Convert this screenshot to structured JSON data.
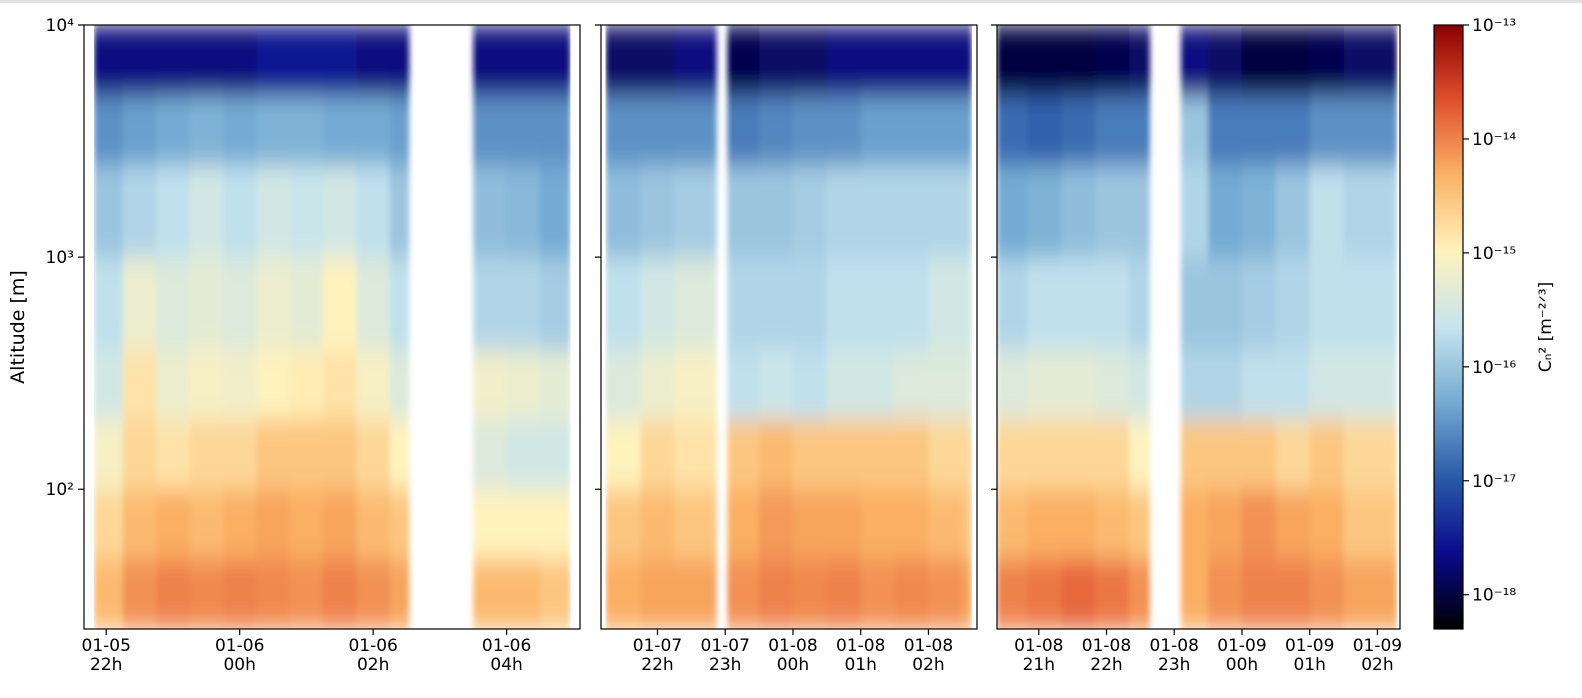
{
  "chart_data": [
    {
      "type": "heatmap",
      "ylabel": "Altitude [m]",
      "ylog": true,
      "ylim": [
        25,
        10000
      ],
      "yticks": [
        {
          "value": 100,
          "label": "10²"
        },
        {
          "value": 1000,
          "label": "10³"
        },
        {
          "value": 10000,
          "label": "10⁴"
        }
      ],
      "xlim": [
        "01-05 21:40",
        "01-06 05:06"
      ],
      "xticks": [
        {
          "value": "01-05 22:00",
          "label": [
            "01-05",
            "22h"
          ]
        },
        {
          "value": "01-06 00:00",
          "label": [
            "01-06",
            "00h"
          ]
        },
        {
          "value": "01-06 02:00",
          "label": [
            "01-06",
            "02h"
          ]
        },
        {
          "value": "01-06 04:00",
          "label": [
            "01-06",
            "04h"
          ]
        }
      ],
      "y_edges": [
        25,
        50,
        100,
        200,
        400,
        1000,
        2500,
        5000,
        10000
      ],
      "x": [
        "01-05 21:49",
        "01-05 22:15",
        "01-05 22:45",
        "01-05 23:15",
        "01-05 23:45",
        "01-06 00:15",
        "01-06 00:45",
        "01-06 01:15",
        "01-06 01:45",
        "01-06 02:15",
        "01-06 02:32",
        "01-06 03:30",
        "01-06 04:00",
        "01-06 04:30",
        "01-06 04:57"
      ],
      "values": [
        [
          4e-15,
          2e-15,
          8e-16,
          3e-16,
          2e-16,
          1e-16,
          3e-17,
          2e-18
        ],
        [
          8e-15,
          4e-15,
          2e-15,
          1.5e-15,
          6e-16,
          1.5e-16,
          4e-17,
          2e-18
        ],
        [
          1e-14,
          5e-15,
          1.5e-15,
          6e-16,
          4e-16,
          2e-16,
          5e-17,
          2e-18
        ],
        [
          9e-15,
          4e-15,
          2e-15,
          8e-16,
          5e-16,
          3e-16,
          6e-17,
          2e-18
        ],
        [
          1e-14,
          5e-15,
          2e-15,
          7e-16,
          4e-16,
          2e-16,
          5e-17,
          2e-18
        ],
        [
          9e-15,
          6e-15,
          3e-15,
          1e-15,
          6e-16,
          3e-16,
          6e-17,
          3e-18
        ],
        [
          8e-15,
          5e-15,
          3e-15,
          1.2e-15,
          5e-16,
          2.5e-16,
          6e-17,
          3e-18
        ],
        [
          1e-14,
          6e-15,
          3e-15,
          1.5e-15,
          1e-15,
          3e-16,
          5e-17,
          3e-18
        ],
        [
          8e-15,
          4e-15,
          2e-15,
          8e-16,
          4e-16,
          2e-16,
          5e-17,
          2e-18
        ],
        [
          6e-15,
          3e-15,
          1e-15,
          4e-16,
          2e-16,
          1e-16,
          4e-17,
          2e-18
        ],
        null,
        [
          4e-15,
          1e-15,
          4e-16,
          7e-16,
          1.5e-16,
          8e-17,
          3e-17,
          2e-18
        ],
        [
          4e-15,
          1e-15,
          3e-16,
          6e-16,
          1.5e-16,
          7e-17,
          3e-17,
          2e-18
        ],
        [
          3e-15,
          1e-15,
          3e-16,
          5e-16,
          1.2e-16,
          5e-17,
          3e-17,
          2e-18
        ]
      ]
    },
    {
      "type": "heatmap",
      "ylog": true,
      "ylim": [
        25,
        10000
      ],
      "yticks": [
        100,
        1000,
        10000
      ],
      "xlim": [
        "01-07 21:10",
        "01-08 02:43"
      ],
      "xticks": [
        {
          "value": "01-07 22:00",
          "label": [
            "01-07",
            "22h"
          ]
        },
        {
          "value": "01-07 23:00",
          "label": [
            "01-07",
            "23h"
          ]
        },
        {
          "value": "01-08 00:00",
          "label": [
            "01-08",
            "00h"
          ]
        },
        {
          "value": "01-08 01:00",
          "label": [
            "01-08",
            "01h"
          ]
        },
        {
          "value": "01-08 02:00",
          "label": [
            "01-08",
            "02h"
          ]
        }
      ],
      "y_edges": [
        25,
        50,
        100,
        200,
        400,
        1000,
        2500,
        5000,
        10000
      ],
      "x": [
        "01-07 21:14",
        "01-07 21:45",
        "01-07 22:15",
        "01-07 22:52",
        "01-07 23:02",
        "01-07 23:30",
        "01-08 00:00",
        "01-08 00:30",
        "01-08 01:00",
        "01-08 01:30",
        "01-08 02:00",
        "01-08 02:30",
        "01-08 02:38"
      ],
      "values": [
        [
          5e-15,
          3e-15,
          1e-15,
          4e-16,
          2e-16,
          8e-17,
          3e-17,
          1.5e-18
        ],
        [
          6e-15,
          4e-15,
          2e-15,
          6e-16,
          3e-16,
          1e-16,
          3e-17,
          1.5e-18
        ],
        [
          6e-15,
          3e-15,
          1.5e-15,
          8e-16,
          4e-16,
          1.2e-16,
          3e-17,
          2e-18
        ],
        null,
        [
          8e-15,
          5e-15,
          3e-15,
          2e-16,
          1.5e-16,
          1e-16,
          2e-17,
          1.2e-18
        ],
        [
          1e-14,
          7e-15,
          4e-15,
          2.5e-16,
          1.5e-16,
          1e-16,
          2.5e-17,
          1.5e-18
        ],
        [
          9e-15,
          6e-15,
          3e-15,
          2e-16,
          1.5e-16,
          1.2e-16,
          3e-17,
          1.5e-18
        ],
        [
          1e-14,
          6e-15,
          3e-15,
          3e-16,
          2e-16,
          1.5e-16,
          3e-17,
          2e-18
        ],
        [
          8e-15,
          5e-15,
          3e-15,
          3e-16,
          2e-16,
          1.5e-16,
          4e-17,
          2e-18
        ],
        [
          9e-15,
          5e-15,
          3e-15,
          4e-16,
          2e-16,
          1.5e-16,
          4e-17,
          2e-18
        ],
        [
          8e-15,
          4e-15,
          2e-15,
          4e-16,
          3e-16,
          1.5e-16,
          4e-17,
          2e-18
        ],
        [
          6e-15,
          3e-15,
          2e-15,
          4e-16,
          3e-16,
          1.5e-16,
          4e-17,
          2e-18
        ]
      ]
    },
    {
      "type": "heatmap",
      "ylog": true,
      "ylim": [
        25,
        10000
      ],
      "yticks": [
        100,
        1000,
        10000
      ],
      "xlim": [
        "01-08 20:23",
        "01-09 02:20"
      ],
      "xticks": [
        {
          "value": "01-08 21:00",
          "label": [
            "01-08",
            "21h"
          ]
        },
        {
          "value": "01-08 22:00",
          "label": [
            "01-08",
            "22h"
          ]
        },
        {
          "value": "01-08 23:00",
          "label": [
            "01-08",
            "23h"
          ]
        },
        {
          "value": "01-09 00:00",
          "label": [
            "01-09",
            "00h"
          ]
        },
        {
          "value": "01-09 01:00",
          "label": [
            "01-09",
            "01h"
          ]
        },
        {
          "value": "01-09 02:00",
          "label": [
            "01-09",
            "02h"
          ]
        }
      ],
      "y_edges": [
        25,
        50,
        100,
        200,
        400,
        1000,
        2500,
        5000,
        10000
      ],
      "x": [
        "01-08 20:23",
        "01-08 20:50",
        "01-08 21:20",
        "01-08 21:50",
        "01-08 22:20",
        "01-08 22:38",
        "01-08 23:06",
        "01-08 23:30",
        "01-09 00:00",
        "01-09 00:30",
        "01-09 01:00",
        "01-09 01:30",
        "01-09 02:00",
        "01-09 02:17"
      ],
      "values": [
        [
          1e-14,
          4e-15,
          2e-15,
          4e-16,
          1.5e-16,
          5e-17,
          1.5e-17,
          1e-18
        ],
        [
          1.2e-14,
          5e-15,
          2e-15,
          5e-16,
          2e-16,
          6e-17,
          1.2e-17,
          1e-18
        ],
        [
          1.5e-14,
          5e-15,
          2e-15,
          5e-16,
          2e-16,
          8e-17,
          1.5e-17,
          1e-18
        ],
        [
          1.2e-14,
          4e-15,
          2e-15,
          4e-16,
          2e-16,
          1e-16,
          2e-17,
          1.2e-18
        ],
        [
          8e-15,
          3e-15,
          1e-15,
          3e-16,
          1.5e-16,
          1e-16,
          2e-17,
          1.5e-18
        ],
        null,
        [
          5e-15,
          5e-15,
          3e-15,
          1.5e-16,
          1e-16,
          1.5e-16,
          1e-16,
          2e-18
        ],
        [
          8e-15,
          6e-15,
          3e-15,
          1.5e-16,
          1e-16,
          5e-17,
          2e-17,
          1.5e-18
        ],
        [
          1e-14,
          8e-15,
          3e-15,
          2e-16,
          1.2e-16,
          6e-17,
          2e-17,
          1e-18
        ],
        [
          1e-14,
          6e-15,
          2e-15,
          2e-16,
          1.5e-16,
          1e-16,
          2e-17,
          1e-18
        ],
        [
          8e-15,
          5e-15,
          3e-15,
          3e-16,
          2e-16,
          2e-16,
          3e-17,
          1.2e-18
        ],
        [
          6e-15,
          3e-15,
          2e-15,
          3e-16,
          2e-16,
          1.5e-16,
          3e-17,
          1.5e-18
        ],
        [
          6e-15,
          3e-15,
          2e-15,
          3e-16,
          2e-16,
          1.5e-16,
          3e-17,
          1.5e-18
        ]
      ]
    },
    {
      "type": "colorbar",
      "label": "Cₙ² [m⁻²ᐟ³]",
      "log": true,
      "clim": [
        5e-19,
        1e-13
      ],
      "ticks": [
        {
          "value": 1e-18,
          "label": "10⁻¹⁸"
        },
        {
          "value": 1e-17,
          "label": "10⁻¹⁷"
        },
        {
          "value": 1e-16,
          "label": "10⁻¹⁶"
        },
        {
          "value": 1e-15,
          "label": "10⁻¹⁵"
        },
        {
          "value": 1e-14,
          "label": "10⁻¹⁴"
        },
        {
          "value": 1e-13,
          "label": "10⁻¹³"
        }
      ],
      "colors": [
        "#000000",
        "#0a0a8c",
        "#2a5aa8",
        "#74aad2",
        "#c6e4ee",
        "#fff2bc",
        "#fbb366",
        "#e0502e",
        "#8b0000"
      ]
    }
  ]
}
